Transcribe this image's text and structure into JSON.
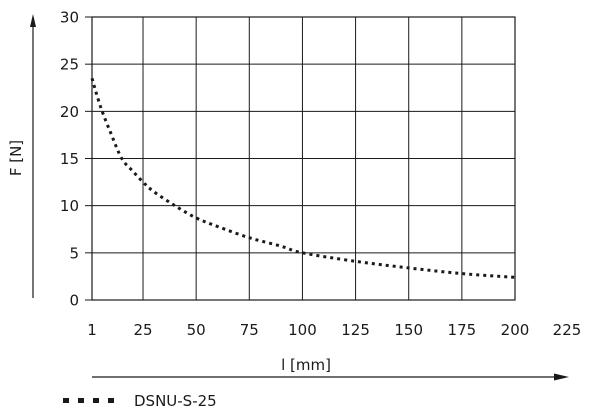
{
  "chart_data": {
    "type": "line",
    "title": "",
    "xlabel": "l [mm]",
    "ylabel": "F [N]",
    "xlim": [
      1,
      225
    ],
    "ylim": [
      0,
      30
    ],
    "x_ticks": [
      1,
      25,
      50,
      75,
      100,
      125,
      150,
      175,
      200,
      225
    ],
    "y_ticks": [
      0,
      5,
      10,
      15,
      20,
      25,
      30
    ],
    "grid": true,
    "legend_position": "bottom-left",
    "series": [
      {
        "name": "DSNU-S-25",
        "style": "dotted",
        "color": "#1a1a1a",
        "x": [
          1,
          5,
          10,
          15,
          20,
          25,
          30,
          40,
          50,
          60,
          75,
          90,
          100,
          125,
          150,
          175,
          200
        ],
        "y": [
          23.5,
          20.5,
          17.6,
          15.0,
          13.7,
          12.5,
          11.5,
          10.0,
          8.7,
          7.8,
          6.6,
          5.7,
          5.0,
          4.1,
          3.4,
          2.8,
          2.4
        ]
      }
    ]
  },
  "x_tick_labels": [
    "1",
    "25",
    "50",
    "75",
    "100",
    "125",
    "150",
    "175",
    "200",
    "225"
  ],
  "y_tick_labels": [
    "0",
    "5",
    "10",
    "15",
    "20",
    "25",
    "30"
  ]
}
